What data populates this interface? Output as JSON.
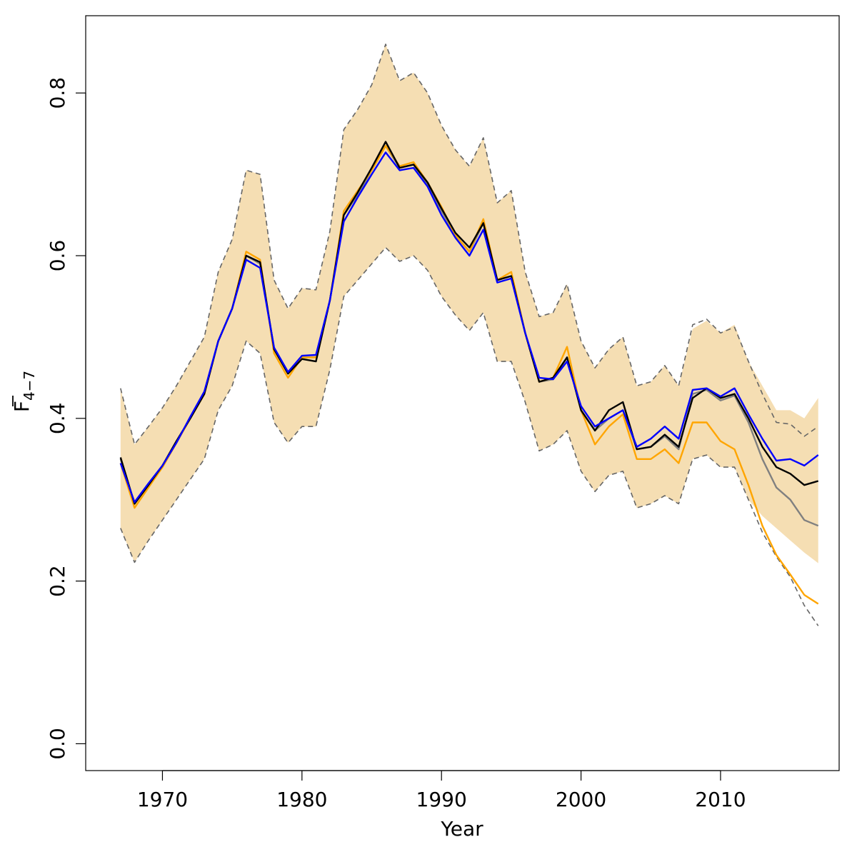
{
  "chart_data": {
    "type": "line",
    "title": "",
    "xlabel": "Year",
    "ylabel": {
      "main": "F",
      "subscript": "4−7",
      "overline": true
    },
    "xlim": [
      1964.5,
      2018.5
    ],
    "ylim": [
      -0.033,
      0.895
    ],
    "x_ticks": [
      1970,
      1980,
      1990,
      2000,
      2010
    ],
    "x_tick_labels": [
      "1970",
      "1980",
      "1990",
      "2000",
      "2010"
    ],
    "y_ticks": [
      0.0,
      0.2,
      0.4,
      0.6,
      0.8
    ],
    "y_tick_labels": [
      "0.0",
      "0.2",
      "0.4",
      "0.6",
      "0.8"
    ],
    "grid": false,
    "legend": "none",
    "colors": {
      "band": "#f5deb3",
      "bounds": "#666666",
      "black": "#000000",
      "blue": "#0000ff",
      "orange": "#ffa500",
      "gray": "#808080"
    },
    "x": [
      1967,
      1968,
      1969,
      1970,
      1971,
      1972,
      1973,
      1974,
      1975,
      1976,
      1977,
      1978,
      1979,
      1980,
      1981,
      1982,
      1983,
      1984,
      1985,
      1986,
      1987,
      1988,
      1989,
      1990,
      1991,
      1992,
      1993,
      1994,
      1995,
      1996,
      1997,
      1998,
      1999,
      2000,
      2001,
      2002,
      2003,
      2004,
      2005,
      2006,
      2007,
      2008,
      2009,
      2010,
      2011,
      2012,
      2013,
      2014,
      2015,
      2016,
      2017
    ],
    "band": {
      "upper": [
        0.437,
        0.368,
        0.39,
        0.413,
        0.44,
        0.47,
        0.5,
        0.58,
        0.62,
        0.705,
        0.7,
        0.57,
        0.535,
        0.56,
        0.558,
        0.63,
        0.755,
        0.78,
        0.81,
        0.86,
        0.815,
        0.825,
        0.8,
        0.76,
        0.73,
        0.71,
        0.745,
        0.665,
        0.68,
        0.58,
        0.525,
        0.53,
        0.565,
        0.495,
        0.462,
        0.485,
        0.5,
        0.44,
        0.445,
        0.465,
        0.44,
        0.51,
        0.52,
        0.505,
        0.515,
        0.47,
        0.44,
        0.41,
        0.41,
        0.4,
        0.425
      ],
      "lower": [
        0.265,
        0.223,
        0.25,
        0.275,
        0.3,
        0.325,
        0.35,
        0.41,
        0.44,
        0.495,
        0.48,
        0.395,
        0.37,
        0.39,
        0.39,
        0.46,
        0.55,
        0.57,
        0.59,
        0.61,
        0.593,
        0.6,
        0.582,
        0.55,
        0.527,
        0.508,
        0.53,
        0.47,
        0.47,
        0.42,
        0.36,
        0.368,
        0.385,
        0.335,
        0.31,
        0.33,
        0.335,
        0.29,
        0.295,
        0.305,
        0.295,
        0.35,
        0.355,
        0.34,
        0.34,
        0.3,
        0.28,
        0.265,
        0.25,
        0.235,
        0.222
      ]
    },
    "series": [
      {
        "key": "upper_bound",
        "style": "dashed",
        "color": "#666666",
        "values": [
          0.437,
          0.368,
          0.39,
          0.413,
          0.44,
          0.47,
          0.5,
          0.58,
          0.62,
          0.705,
          0.7,
          0.57,
          0.535,
          0.56,
          0.558,
          0.63,
          0.755,
          0.78,
          0.81,
          0.86,
          0.815,
          0.825,
          0.8,
          0.76,
          0.73,
          0.71,
          0.745,
          0.665,
          0.68,
          0.58,
          0.525,
          0.53,
          0.565,
          0.495,
          0.462,
          0.485,
          0.5,
          0.44,
          0.445,
          0.465,
          0.44,
          0.515,
          0.522,
          0.505,
          0.512,
          0.47,
          0.43,
          0.395,
          0.393,
          0.378,
          0.39
        ]
      },
      {
        "key": "lower_bound",
        "style": "dashed",
        "color": "#666666",
        "values": [
          0.265,
          0.223,
          0.25,
          0.275,
          0.3,
          0.325,
          0.35,
          0.41,
          0.44,
          0.495,
          0.48,
          0.395,
          0.37,
          0.39,
          0.39,
          0.46,
          0.55,
          0.57,
          0.59,
          0.61,
          0.593,
          0.6,
          0.582,
          0.55,
          0.527,
          0.508,
          0.53,
          0.47,
          0.47,
          0.42,
          0.36,
          0.368,
          0.385,
          0.335,
          0.31,
          0.33,
          0.335,
          0.29,
          0.295,
          0.305,
          0.295,
          0.35,
          0.355,
          0.34,
          0.34,
          0.3,
          0.26,
          0.23,
          0.205,
          0.17,
          0.145
        ]
      },
      {
        "key": "gray",
        "style": "solid",
        "color": "#808080",
        "values": [
          0.35,
          0.295,
          0.318,
          0.34,
          0.37,
          0.4,
          0.43,
          0.495,
          0.535,
          0.6,
          0.59,
          0.485,
          0.455,
          0.475,
          0.475,
          0.545,
          0.65,
          0.675,
          0.705,
          0.735,
          0.708,
          0.712,
          0.688,
          0.655,
          0.625,
          0.605,
          0.64,
          0.57,
          0.575,
          0.505,
          0.445,
          0.448,
          0.475,
          0.41,
          0.385,
          0.4,
          0.41,
          0.362,
          0.365,
          0.378,
          0.362,
          0.43,
          0.435,
          0.422,
          0.428,
          0.395,
          0.35,
          0.315,
          0.3,
          0.275,
          0.268
        ]
      },
      {
        "key": "orange",
        "style": "solid",
        "color": "#ffa500",
        "values": [
          0.345,
          0.29,
          0.315,
          0.34,
          0.37,
          0.4,
          0.43,
          0.495,
          0.535,
          0.605,
          0.595,
          0.48,
          0.45,
          0.475,
          0.475,
          0.545,
          0.655,
          0.68,
          0.705,
          0.735,
          0.71,
          0.715,
          0.69,
          0.66,
          0.625,
          0.605,
          0.645,
          0.57,
          0.58,
          0.505,
          0.445,
          0.45,
          0.488,
          0.41,
          0.368,
          0.39,
          0.405,
          0.35,
          0.35,
          0.362,
          0.345,
          0.395,
          0.395,
          0.372,
          0.362,
          0.318,
          0.268,
          0.232,
          0.208,
          0.183,
          0.172
        ]
      },
      {
        "key": "black",
        "style": "solid",
        "color": "#000000",
        "values": [
          0.352,
          0.295,
          0.318,
          0.342,
          0.372,
          0.4,
          0.43,
          0.495,
          0.535,
          0.6,
          0.592,
          0.485,
          0.455,
          0.473,
          0.47,
          0.545,
          0.65,
          0.678,
          0.708,
          0.74,
          0.708,
          0.712,
          0.69,
          0.658,
          0.628,
          0.61,
          0.64,
          0.57,
          0.575,
          0.505,
          0.445,
          0.45,
          0.475,
          0.41,
          0.385,
          0.41,
          0.42,
          0.362,
          0.365,
          0.38,
          0.365,
          0.425,
          0.437,
          0.425,
          0.43,
          0.4,
          0.365,
          0.34,
          0.332,
          0.318,
          0.323
        ]
      },
      {
        "key": "blue",
        "style": "solid",
        "color": "#0000ff",
        "values": [
          0.345,
          0.297,
          0.32,
          0.342,
          0.37,
          0.402,
          0.433,
          0.495,
          0.535,
          0.595,
          0.585,
          0.487,
          0.457,
          0.477,
          0.478,
          0.545,
          0.642,
          0.672,
          0.7,
          0.727,
          0.705,
          0.708,
          0.685,
          0.65,
          0.622,
          0.6,
          0.632,
          0.567,
          0.572,
          0.505,
          0.45,
          0.448,
          0.47,
          0.415,
          0.39,
          0.4,
          0.41,
          0.365,
          0.375,
          0.39,
          0.375,
          0.435,
          0.437,
          0.427,
          0.437,
          0.405,
          0.375,
          0.348,
          0.35,
          0.342,
          0.355
        ]
      }
    ]
  }
}
